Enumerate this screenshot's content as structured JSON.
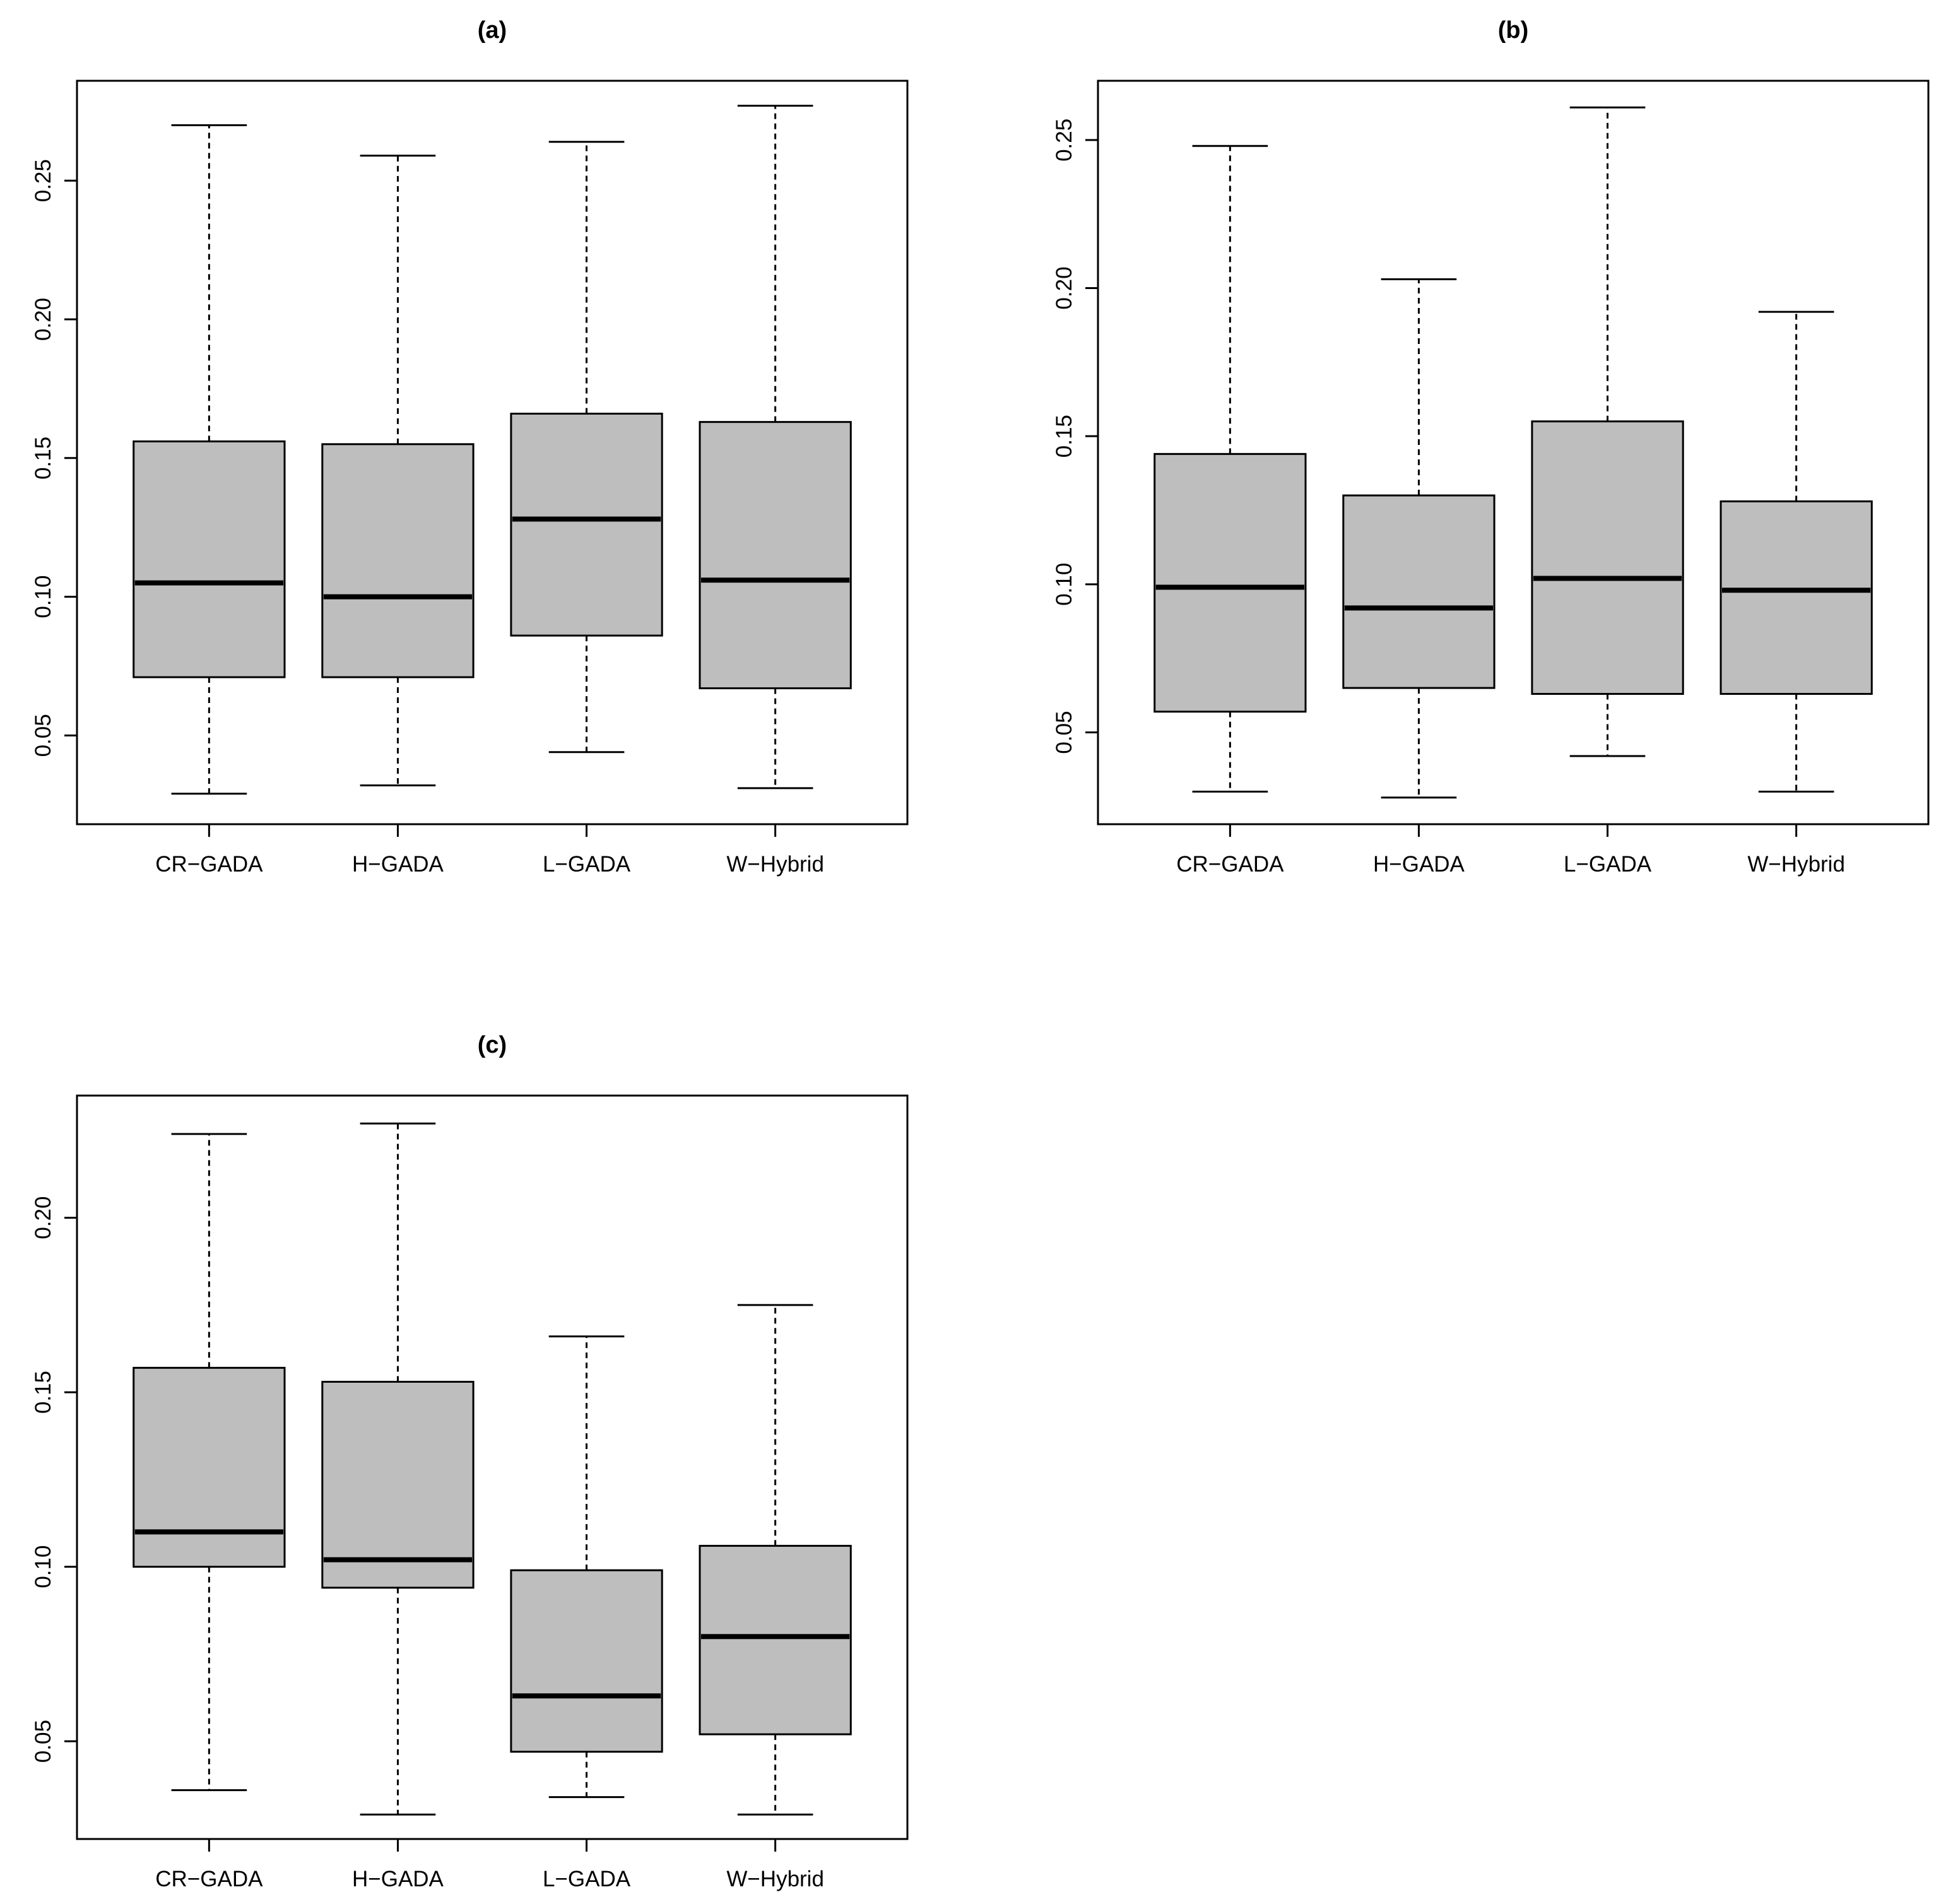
{
  "chart_data": [
    {
      "type": "boxplot",
      "title": "(a)",
      "categories": [
        "CR−GADA",
        "H−GADA",
        "L−GADA",
        "W−Hybrid"
      ],
      "yticks": [
        "0.05",
        "0.10",
        "0.15",
        "0.20",
        "0.25"
      ],
      "ylim": [
        0.018,
        0.286
      ],
      "boxes": [
        {
          "min": 0.029,
          "q1": 0.071,
          "median": 0.105,
          "q3": 0.156,
          "max": 0.27
        },
        {
          "min": 0.032,
          "q1": 0.071,
          "median": 0.1,
          "q3": 0.155,
          "max": 0.259
        },
        {
          "min": 0.044,
          "q1": 0.086,
          "median": 0.128,
          "q3": 0.166,
          "max": 0.264
        },
        {
          "min": 0.031,
          "q1": 0.067,
          "median": 0.106,
          "q3": 0.163,
          "max": 0.277
        }
      ]
    },
    {
      "type": "boxplot",
      "title": "(b)",
      "categories": [
        "CR−GADA",
        "H−GADA",
        "L−GADA",
        "W−Hybrid"
      ],
      "yticks": [
        "0.05",
        "0.10",
        "0.15",
        "0.20",
        "0.25"
      ],
      "ylim": [
        0.019,
        0.27
      ],
      "boxes": [
        {
          "min": 0.03,
          "q1": 0.057,
          "median": 0.099,
          "q3": 0.144,
          "max": 0.248
        },
        {
          "min": 0.028,
          "q1": 0.065,
          "median": 0.092,
          "q3": 0.13,
          "max": 0.203
        },
        {
          "min": 0.042,
          "q1": 0.063,
          "median": 0.102,
          "q3": 0.155,
          "max": 0.261
        },
        {
          "min": 0.03,
          "q1": 0.063,
          "median": 0.098,
          "q3": 0.128,
          "max": 0.192
        }
      ]
    },
    {
      "type": "boxplot",
      "title": "(c)",
      "categories": [
        "CR−GADA",
        "H−GADA",
        "L−GADA",
        "W−Hybrid"
      ],
      "yticks": [
        "0.05",
        "0.10",
        "0.15",
        "0.20"
      ],
      "ylim": [
        0.022,
        0.235
      ],
      "boxes": [
        {
          "min": 0.036,
          "q1": 0.1,
          "median": 0.11,
          "q3": 0.157,
          "max": 0.224
        },
        {
          "min": 0.029,
          "q1": 0.094,
          "median": 0.102,
          "q3": 0.153,
          "max": 0.227
        },
        {
          "min": 0.034,
          "q1": 0.047,
          "median": 0.063,
          "q3": 0.099,
          "max": 0.166
        },
        {
          "min": 0.029,
          "q1": 0.052,
          "median": 0.08,
          "q3": 0.106,
          "max": 0.175
        }
      ]
    }
  ]
}
